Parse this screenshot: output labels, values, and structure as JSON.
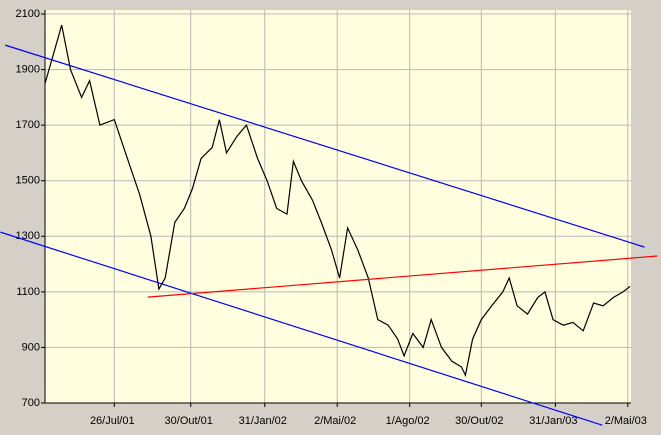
{
  "chart_data": {
    "type": "line",
    "x": [
      "2001-04-30",
      "2001-05-10",
      "2001-05-21",
      "2001-06-01",
      "2001-06-15",
      "2001-06-25",
      "2001-07-08",
      "2001-07-26",
      "2001-08-15",
      "2001-08-27",
      "2001-09-10",
      "2001-09-20",
      "2001-09-28",
      "2001-10-10",
      "2001-10-22",
      "2001-11-01",
      "2001-11-12",
      "2001-11-26",
      "2001-12-05",
      "2001-12-14",
      "2001-12-27",
      "2002-01-08",
      "2002-01-22",
      "2002-02-03",
      "2002-02-15",
      "2002-02-28",
      "2002-03-08",
      "2002-03-18",
      "2002-04-01",
      "2002-04-12",
      "2002-04-25",
      "2002-05-05",
      "2002-05-15",
      "2002-05-28",
      "2002-06-10",
      "2002-06-22",
      "2002-07-05",
      "2002-07-17",
      "2002-07-25",
      "2002-08-05",
      "2002-08-18",
      "2002-08-28",
      "2002-09-10",
      "2002-09-23",
      "2002-10-05",
      "2002-10-10",
      "2002-10-19",
      "2002-10-30",
      "2002-11-12",
      "2002-11-26",
      "2002-12-04",
      "2002-12-14",
      "2002-12-27",
      "2003-01-09",
      "2003-01-18",
      "2003-01-28",
      "2003-02-10",
      "2003-02-22",
      "2003-03-07",
      "2003-03-20",
      "2003-04-01",
      "2003-04-14",
      "2003-04-26",
      "2003-05-05"
    ],
    "series": [
      {
        "color": "#000000",
        "values": [
          1850,
          1950,
          2060,
          1900,
          1800,
          1860,
          1700,
          1720,
          1550,
          1450,
          1300,
          1110,
          1150,
          1350,
          1400,
          1470,
          1580,
          1620,
          1720,
          1600,
          1660,
          1700,
          1580,
          1500,
          1400,
          1380,
          1570,
          1500,
          1430,
          1350,
          1250,
          1150,
          1330,
          1250,
          1150,
          1000,
          980,
          930,
          870,
          950,
          900,
          1000,
          900,
          850,
          830,
          800,
          930,
          1000,
          1050,
          1100,
          1150,
          1050,
          1020,
          1080,
          1100,
          1000,
          980,
          990,
          960,
          1060,
          1050,
          1080,
          1100,
          1120
        ]
      }
    ],
    "lines": [
      {
        "color": "#0000ff",
        "x": [
          "2001-03-11",
          "2003-05-23"
        ],
        "values": [
          1988,
          1261
        ]
      },
      {
        "color": "#0000ff",
        "x": [
          "2001-03-05",
          "2003-03-31"
        ],
        "values": [
          1315,
          620
        ]
      },
      {
        "color": "#ff0000",
        "x": [
          "2001-09-06",
          "2003-06-08"
        ],
        "values": [
          1081,
          1229
        ]
      }
    ],
    "xlim": [
      "2001-04-30",
      "2003-05-06"
    ],
    "xticks": [
      {
        "value": "2001-07-26",
        "label": "26/Jul/01"
      },
      {
        "value": "2001-10-30",
        "label": "30/Out/01"
      },
      {
        "value": "2002-01-31",
        "label": "31/Jan/02"
      },
      {
        "value": "2002-05-02",
        "label": "2/Mai/02"
      },
      {
        "value": "2002-08-01",
        "label": "1/Ago/02"
      },
      {
        "value": "2002-10-30",
        "label": "30/Out/02"
      },
      {
        "value": "2003-01-31",
        "label": "31/Jan/03"
      },
      {
        "value": "2003-05-02",
        "label": "2/Mai/03"
      }
    ],
    "ylim": [
      700,
      2100
    ],
    "yticks": [
      700,
      900,
      1100,
      1300,
      1500,
      1700,
      1900,
      2100
    ],
    "grid": true,
    "background": "#ffffe0"
  }
}
